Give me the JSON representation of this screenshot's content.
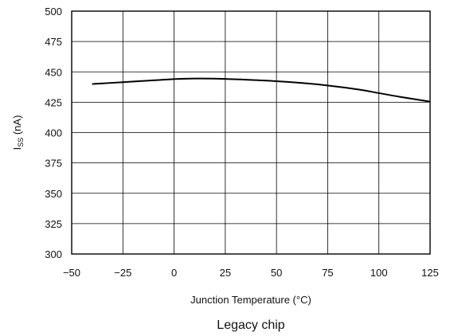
{
  "chart_data": {
    "type": "line",
    "title": "",
    "caption": "Legacy chip",
    "xlabel": "Junction Temperature (°C)",
    "ylabel_main": "I",
    "ylabel_sub": "SS",
    "ylabel_unit": " (nA)",
    "xlim": [
      -50,
      125
    ],
    "ylim": [
      300,
      500
    ],
    "xticks": [
      -50,
      -25,
      0,
      25,
      50,
      75,
      100,
      125
    ],
    "xtick_labels": [
      "−50",
      "−25",
      "0",
      "25",
      "50",
      "75",
      "100",
      "125"
    ],
    "yticks": [
      300,
      325,
      350,
      375,
      400,
      425,
      450,
      475,
      500
    ],
    "yticks_labels": [
      "300",
      "325",
      "350",
      "375",
      "400",
      "425",
      "450",
      "475",
      "500"
    ],
    "grid": true,
    "series": [
      {
        "x": [
          -40,
          -25,
          -10,
          0,
          10,
          25,
          40,
          50,
          65,
          75,
          90,
          100,
          110,
          125
        ],
        "y": [
          440,
          441.5,
          443,
          444,
          444.5,
          444.2,
          443.2,
          442.3,
          440.5,
          438.8,
          435.5,
          432.5,
          429.5,
          425.5
        ]
      }
    ],
    "colors": {
      "line": "#000000",
      "grid": "#000000",
      "frame": "#000000"
    }
  }
}
